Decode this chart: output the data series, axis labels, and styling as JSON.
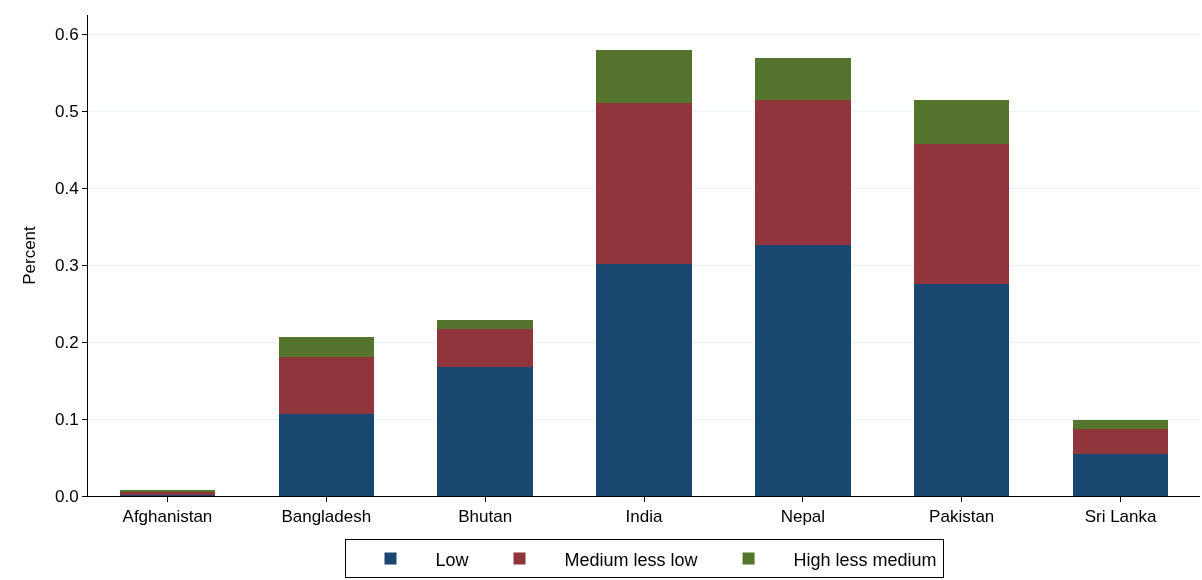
{
  "chart_data": {
    "type": "bar",
    "stacked": true,
    "ylabel": "Percent",
    "categories": [
      "Afghanistan",
      "Bangladesh",
      "Bhutan",
      "India",
      "Nepal",
      "Pakistan",
      "Sri Lanka"
    ],
    "series": [
      {
        "name": "Low",
        "color": "#1a476f",
        "values": [
          0.001,
          0.106,
          0.167,
          0.302,
          0.326,
          0.275,
          0.054
        ]
      },
      {
        "name": "Medium less low",
        "color": "#90353b",
        "values": [
          0.004,
          0.074,
          0.05,
          0.209,
          0.189,
          0.183,
          0.033
        ]
      },
      {
        "name": "High less medium",
        "color": "#55752f",
        "values": [
          0.003,
          0.026,
          0.012,
          0.069,
          0.054,
          0.056,
          0.012
        ]
      }
    ],
    "ylim": [
      0,
      0.625
    ],
    "yticks": [
      {
        "value": 0,
        "label": "0.0"
      },
      0.1,
      0.2,
      0.3,
      0.4,
      0.5,
      0.6
    ],
    "grid": "y",
    "legend": "bottom"
  }
}
